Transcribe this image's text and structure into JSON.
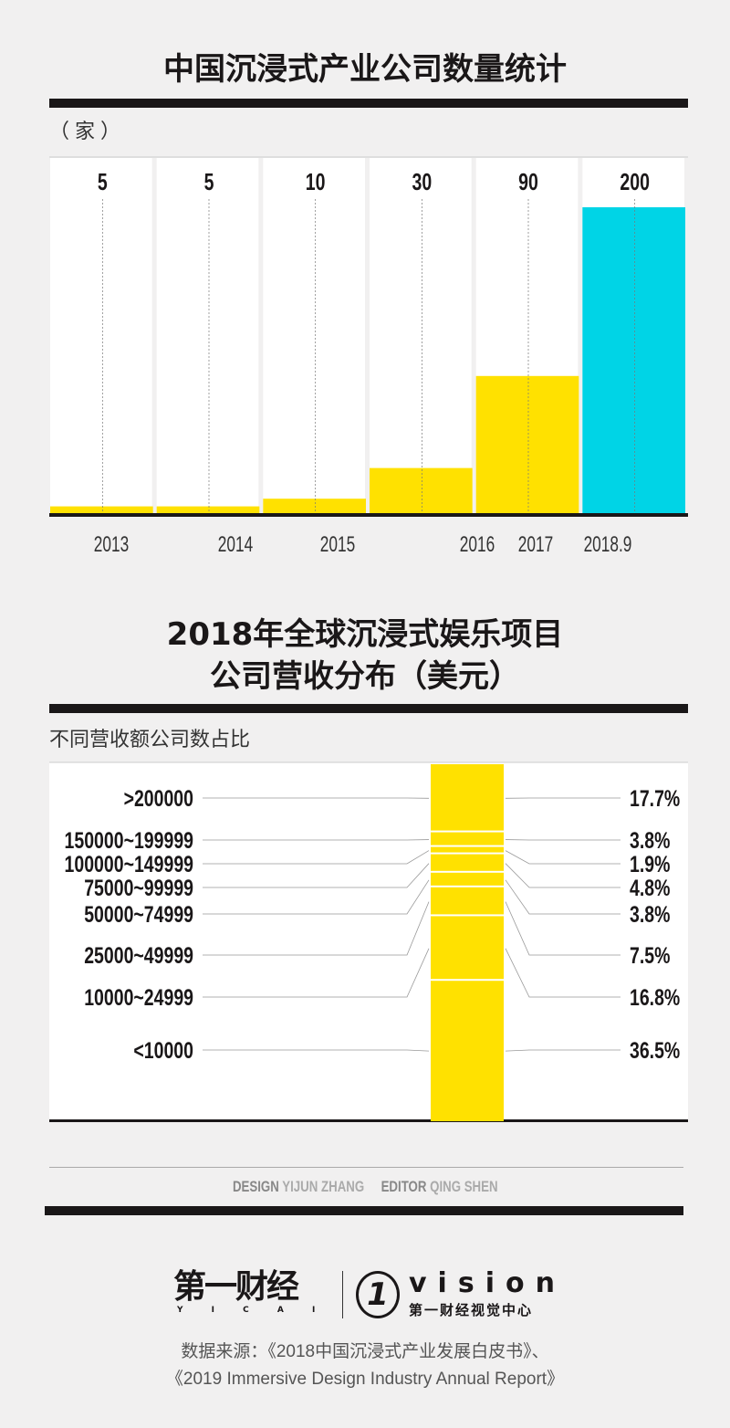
{
  "chart_data": [
    {
      "type": "bar",
      "title": "中国沉浸式产业公司数量统计",
      "ylabel": "（家）",
      "categories": [
        "2013",
        "2014",
        "2015",
        "2016",
        "2017",
        "2018.9"
      ],
      "values": [
        5,
        5,
        10,
        30,
        90,
        200
      ],
      "colors": [
        "#ffe100",
        "#ffe100",
        "#ffe100",
        "#ffe100",
        "#ffe100",
        "#00d4e6"
      ],
      "ylim": [
        0,
        200
      ]
    },
    {
      "type": "bar",
      "title_line1": "2018年全球沉浸式娱乐项目",
      "title_line2": "公司营收分布（美元）",
      "subtitle": "不同营收额公司数占比",
      "categories": [
        ">200000",
        "150000~199999",
        "100000~149999",
        "75000~99999",
        "50000~74999",
        "25000~49999",
        "10000~24999",
        "<10000"
      ],
      "values": [
        17.7,
        3.8,
        1.9,
        4.8,
        3.8,
        7.5,
        16.8,
        36.5
      ],
      "value_labels": [
        "17.7%",
        "3.8%",
        "1.9%",
        "4.8%",
        "3.8%",
        "7.5%",
        "16.8%",
        "36.5%"
      ],
      "color": "#ffe100"
    }
  ],
  "credits": {
    "design_label": "DESIGN",
    "design_name": "YIJUN ZHANG",
    "editor_label": "EDITOR",
    "editor_name": "QING SHEN"
  },
  "logos": {
    "yicai": "第一财经",
    "yicai_en": "Y I C A I",
    "vision": "vision",
    "vision_cn": "第一财经视觉中心"
  },
  "source": {
    "line1": "数据来源：《2018中国沉浸式产业发展白皮书》、",
    "line2": "《2019 Immersive Design Industry Annual Report》"
  }
}
